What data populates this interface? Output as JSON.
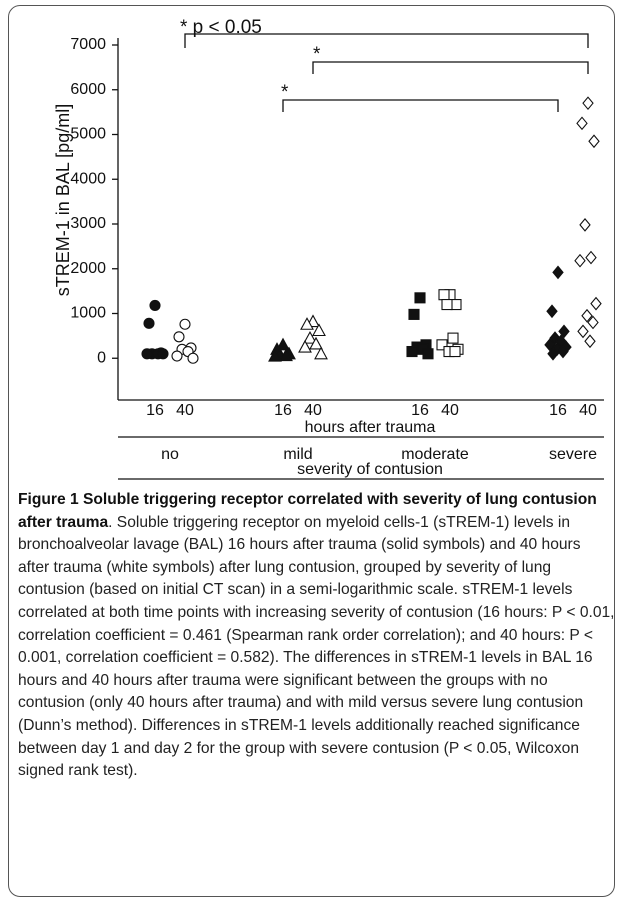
{
  "chart_data": {
    "type": "scatter",
    "ylabel": "sTREM-1 in BAL [pg/ml]",
    "ylim": [
      -1000,
      7000
    ],
    "yticks": [
      0,
      1000,
      2000,
      3000,
      4000,
      5000,
      6000,
      7000
    ],
    "xlabel": "hours after trauma",
    "group_axis_label": "severity of contusion",
    "groups": [
      {
        "label": "no",
        "marker": "circle",
        "series": [
          {
            "hours": "16",
            "filled": true,
            "values": [
              1180,
              780,
              120,
              100,
              100,
              100,
              100
            ]
          },
          {
            "hours": "40",
            "filled": false,
            "values": [
              760,
              480,
              230,
              200,
              150,
              50,
              0
            ]
          }
        ]
      },
      {
        "label": "mild",
        "marker": "triangle",
        "series": [
          {
            "hours": "16",
            "filled": true,
            "values": [
              300,
              200,
              100,
              80,
              60,
              50
            ]
          },
          {
            "hours": "40",
            "filled": false,
            "values": [
              820,
              760,
              620,
              450,
              320,
              250,
              100
            ]
          }
        ]
      },
      {
        "label": "moderate",
        "marker": "square",
        "series": [
          {
            "hours": "16",
            "filled": true,
            "values": [
              1350,
              980,
              300,
              250,
              200,
              150,
              100
            ]
          },
          {
            "hours": "40",
            "filled": false,
            "values": [
              1420,
              1420,
              1200,
              1200,
              450,
              300,
              200,
              150,
              150
            ]
          }
        ]
      },
      {
        "label": "severe",
        "marker": "diamond",
        "series": [
          {
            "hours": "16",
            "filled": true,
            "values": [
              1920,
              1050,
              600,
              450,
              380,
              300,
              250,
              200,
              150,
              100
            ]
          },
          {
            "hours": "40",
            "filled": false,
            "values": [
              5700,
              5250,
              4850,
              2980,
              2250,
              2180,
              1220,
              950,
              800,
              600,
              380
            ]
          }
        ]
      }
    ],
    "annotations": [
      "* p < 0.05",
      "*",
      "*"
    ],
    "caption_title": "Figure 1 Soluble triggering receptor correlated with severity of lung contusion after trauma",
    "caption_body": ". Soluble triggering receptor on myeloid cells-1 (sTREM-1) levels in bronchoalveolar lavage (BAL) 16 hours after trauma (solid symbols) and 40 hours after trauma (white symbols) after lung contusion, grouped by severity of lung contusion (based on initial CT scan) in a semi-logarithmic scale. sTREM-1 levels correlated at both time points with increasing severity of contusion (16 hours: P < 0.01, correlation coefficient = 0.461 (Spearman rank order correlation); and 40 hours: P < 0.001, correlation coefficient = 0.582). The differences in sTREM-1 levels in BAL 16 hours and 40 hours after trauma were significant between the groups with no contusion (only 40 hours after trauma) and with mild versus severe lung contusion (Dunn’s method). Differences in sTREM-1 levels additionally reached significance between day 1 and day 2 for the group with severe contusion (P < 0.05, Wilcoxon signed rank test)."
  }
}
